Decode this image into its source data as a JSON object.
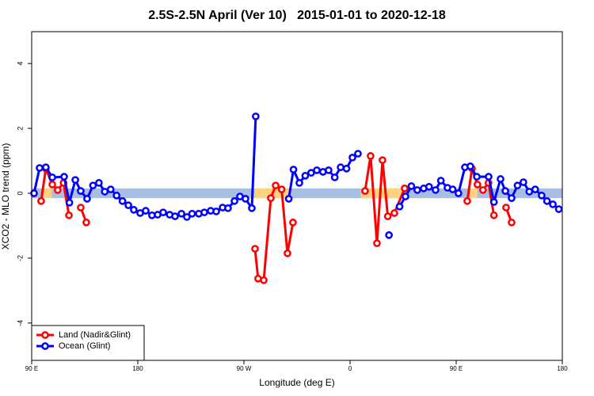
{
  "chart_data": {
    "type": "line",
    "title": "2.5S-2.5N April (Ver 10)   2015-01-01 to 2020-12-18",
    "x_label": "Longitude (deg E)",
    "y_label": "XCO2 - MLO trend (ppm)",
    "xlim": [
      90,
      540
    ],
    "ylim": [
      -5.15,
      4.98
    ],
    "xticks": [
      {
        "value": 90,
        "label": "90 E"
      },
      {
        "value": 180,
        "label": "180"
      },
      {
        "value": 270,
        "label": "90 W"
      },
      {
        "value": 360,
        "label": "0"
      },
      {
        "value": 450,
        "label": "90 E"
      },
      {
        "value": 540,
        "label": "180"
      }
    ],
    "yticks": [
      -4,
      -2,
      0,
      2,
      4
    ],
    "legend": "bottom-left",
    "bands": [
      {
        "color": "#a7bfe2",
        "x": [
          90,
          540
        ],
        "y": [
          -0.15,
          0.15
        ]
      },
      {
        "color": "#ffd27f",
        "x": [
          100,
          107
        ],
        "y": [
          -0.15,
          0.15
        ]
      },
      {
        "color": "#ffd27f",
        "x": [
          279,
          310
        ],
        "y": [
          -0.15,
          0.15
        ]
      },
      {
        "color": "#ffd27f",
        "x": [
          369,
          406
        ],
        "y": [
          -0.15,
          0.15
        ]
      },
      {
        "color": "#ffd27f",
        "x": [
          461,
          468
        ],
        "y": [
          -0.15,
          0.15
        ]
      }
    ],
    "series": [
      {
        "name": "Land (Nadir&Glint)",
        "color": "#ff0000",
        "x": [
          98,
          102,
          107.5,
          112,
          117,
          121.6,
          null,
          131.6,
          136.3,
          null,
          279.4,
          282,
          286.8,
          292.8,
          296.9,
          302,
          306.9,
          311.6,
          null,
          372.7,
          377.4,
          382.8,
          387.5,
          392,
          397.6,
          406.3,
          null,
          459.4,
          463.4,
          468,
          472.7,
          477.4,
          482,
          null,
          492.3,
          497
        ],
        "values": [
          -0.24,
          0.76,
          0.27,
          0.1,
          0.32,
          -0.68,
          null,
          -0.44,
          -0.9,
          null,
          -1.71,
          -2.63,
          -2.68,
          -0.15,
          0.24,
          0.12,
          -1.85,
          -0.9,
          null,
          0.07,
          1.15,
          -1.54,
          1.02,
          -0.71,
          -0.61,
          0.15,
          null,
          -0.24,
          0.76,
          0.27,
          0.1,
          0.32,
          -0.68,
          null,
          -0.44,
          -0.9
        ]
      },
      {
        "name": "Ocean (Glint)",
        "color": "#0000ff",
        "x": [
          92,
          96.7,
          102,
          107.5,
          117.5,
          122,
          127,
          131.6,
          137,
          142,
          147,
          152,
          157,
          162,
          167,
          172,
          176.6,
          182,
          186.7,
          192,
          196.8,
          201.5,
          207,
          211.6,
          217,
          221.6,
          226,
          231.7,
          236.4,
          241.8,
          246.5,
          251.9,
          256.5,
          262,
          266.6,
          271.3,
          276.7,
          280,
          null,
          308,
          312,
          317,
          322,
          327,
          331.8,
          337,
          341.8,
          347,
          352,
          357,
          362,
          366.7,
          null,
          393,
          null,
          402,
          407,
          412,
          417,
          422.4,
          427,
          432.5,
          437,
          442.6,
          447,
          451.9,
          457.4,
          462,
          467.5,
          477.5,
          482,
          487.6,
          491.7,
          497,
          502,
          507,
          512,
          517,
          522.5,
          527,
          532,
          537
        ],
        "values": [
          0,
          0.78,
          0.8,
          0.49,
          0.51,
          -0.29,
          0.41,
          0.07,
          -0.17,
          0.24,
          0.32,
          0.05,
          0.12,
          -0.07,
          -0.24,
          -0.37,
          -0.51,
          -0.61,
          -0.54,
          -0.68,
          -0.66,
          -0.59,
          -0.66,
          -0.71,
          -0.63,
          -0.73,
          -0.63,
          -0.63,
          -0.59,
          -0.54,
          -0.56,
          -0.44,
          -0.46,
          -0.24,
          -0.1,
          -0.17,
          -0.46,
          2.37,
          null,
          -0.17,
          0.73,
          0.32,
          0.54,
          0.63,
          0.71,
          0.66,
          0.71,
          0.49,
          0.8,
          0.76,
          1.1,
          1.22,
          null,
          -1.29,
          null,
          -0.41,
          -0.1,
          0.22,
          0.1,
          0.15,
          0.2,
          0.1,
          0.39,
          0.17,
          0.12,
          0,
          0.8,
          0.83,
          0.51,
          0.51,
          -0.27,
          0.44,
          0.07,
          -0.15,
          0.24,
          0.34,
          0.05,
          0.12,
          -0.07,
          -0.24,
          -0.34,
          -0.49
        ]
      }
    ]
  }
}
